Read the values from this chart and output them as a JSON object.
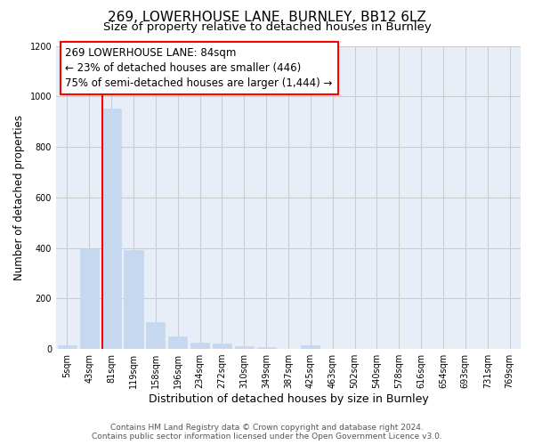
{
  "title": "269, LOWERHOUSE LANE, BURNLEY, BB12 6LZ",
  "subtitle": "Size of property relative to detached houses in Burnley",
  "xlabel": "Distribution of detached houses by size in Burnley",
  "ylabel": "Number of detached properties",
  "categories": [
    "5sqm",
    "43sqm",
    "81sqm",
    "119sqm",
    "158sqm",
    "196sqm",
    "234sqm",
    "272sqm",
    "310sqm",
    "349sqm",
    "387sqm",
    "425sqm",
    "463sqm",
    "502sqm",
    "540sqm",
    "578sqm",
    "616sqm",
    "654sqm",
    "693sqm",
    "731sqm",
    "769sqm"
  ],
  "values": [
    15,
    395,
    950,
    390,
    105,
    50,
    25,
    20,
    12,
    8,
    0,
    15,
    0,
    0,
    0,
    0,
    0,
    0,
    0,
    0,
    0
  ],
  "bar_color": "#c5d8f0",
  "bar_edgecolor": "#c5d8f0",
  "red_line_index": 2,
  "annotation_text": "269 LOWERHOUSE LANE: 84sqm\n← 23% of detached houses are smaller (446)\n75% of semi-detached houses are larger (1,444) →",
  "annotation_box_color": "white",
  "annotation_box_edgecolor": "red",
  "red_line_color": "red",
  "ylim": [
    0,
    1200
  ],
  "yticks": [
    0,
    200,
    400,
    600,
    800,
    1000,
    1200
  ],
  "grid_color": "#cccccc",
  "background_color": "#e8eef8",
  "footer_line1": "Contains HM Land Registry data © Crown copyright and database right 2024.",
  "footer_line2": "Contains public sector information licensed under the Open Government Licence v3.0.",
  "title_fontsize": 11,
  "subtitle_fontsize": 9.5,
  "xlabel_fontsize": 9,
  "ylabel_fontsize": 8.5,
  "tick_fontsize": 7,
  "annotation_fontsize": 8.5
}
